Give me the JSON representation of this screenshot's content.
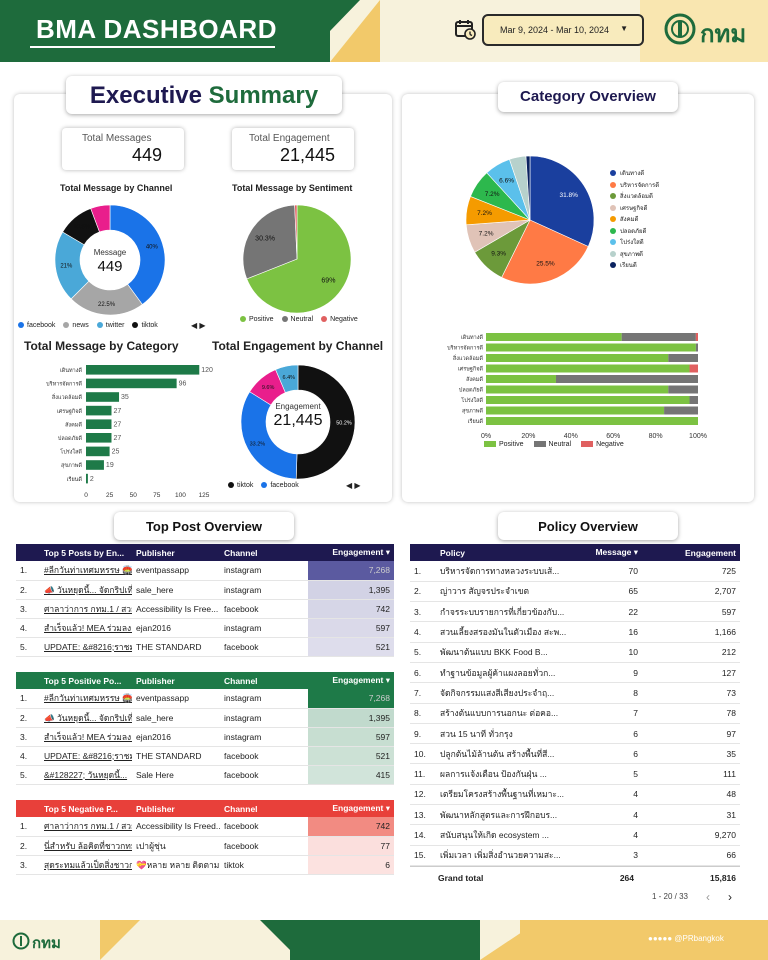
{
  "header": {
    "title": "BMA DASHBOARD",
    "date_range": "Mar 9, 2024 - Mar 10, 2024",
    "logo_text": "กทม"
  },
  "executive": {
    "title_part1": "Executive",
    "title_part2": "Summary",
    "kpi_messages_label": "Total Messages",
    "kpi_messages_value": "449",
    "kpi_engagement_label": "Total Engagement",
    "kpi_engagement_value": "21,445",
    "channel_title": "Total Message by Channel",
    "channel_center_label": "Message",
    "channel_center_value": "449",
    "sentiment_title": "Total Message by Sentiment",
    "category_title": "Total Message by Category",
    "engagement_title": "Total Engagement by Channel",
    "engagement_center_label": "Engagement",
    "engagement_center_value": "21,445"
  },
  "chart_data": [
    {
      "type": "pie",
      "title": "Total Message by Channel",
      "labels": [
        "facebook",
        "news",
        "twitter",
        "tiktok",
        "other"
      ],
      "values": [
        40,
        22.5,
        21,
        10.8,
        5.7
      ],
      "value_labels": [
        "40%",
        "22.5%",
        "21%",
        "10.8%",
        ""
      ],
      "colors": [
        "#1a73e8",
        "#a6a6a6",
        "#4aa8d8",
        "#111111",
        "#e91e8c"
      ],
      "legend": [
        "facebook",
        "news",
        "twitter",
        "tiktok"
      ]
    },
    {
      "type": "pie",
      "title": "Total Message by Sentiment",
      "labels": [
        "Positive",
        "Neutral",
        "Negative"
      ],
      "values": [
        69,
        30.3,
        0.7
      ],
      "value_labels": [
        "69%",
        "30.3%",
        ""
      ],
      "colors": [
        "#7cc242",
        "#757575",
        "#e06060"
      ],
      "legend": [
        "Positive",
        "Neutral",
        "Negative"
      ]
    },
    {
      "type": "bar",
      "title": "Total Message by Category",
      "categories": [
        "เดินทางดี",
        "บริหารจัดการดี",
        "สิ่งแวดล้อมดี",
        "เศรษฐกิจดี",
        "สังคมดี",
        "ปลอดภัยดี",
        "โปร่งใสดี",
        "สุขภาพดี",
        "เรียนดี"
      ],
      "values": [
        120,
        96,
        35,
        27,
        27,
        27,
        25,
        19,
        2
      ],
      "xticks": [
        "0",
        "25",
        "50",
        "75",
        "100",
        "125"
      ],
      "xlim": [
        0,
        125
      ],
      "color": "#1e7a48"
    },
    {
      "type": "pie",
      "title": "Total Engagement by Channel",
      "labels": [
        "tiktok",
        "facebook",
        "other1",
        "other2"
      ],
      "values": [
        50.2,
        33.2,
        9.6,
        6.4
      ],
      "value_labels": [
        "50.2%",
        "33.2%",
        "9.6%",
        "6.4%"
      ],
      "colors": [
        "#111111",
        "#1a73e8",
        "#e91e8c",
        "#4aa8d8"
      ],
      "legend": [
        "tiktok",
        "facebook"
      ]
    },
    {
      "type": "pie",
      "title": "Category Overview",
      "labels": [
        "เดินทางดี",
        "บริหารจัดการดี",
        "สิ่งแวดล้อมดี",
        "เศรษฐกิจดี",
        "สังคมดี",
        "ปลอดภัยดี",
        "โปร่งใสดี",
        "สุขภาพดี",
        "เรียนดี"
      ],
      "values": [
        31.8,
        25.5,
        9.3,
        7.2,
        7.2,
        7.2,
        6.6,
        4.2,
        1.0
      ],
      "value_labels": [
        "31.8%",
        "25.5%",
        "9.3%",
        "7.2%",
        "7.2%",
        "7.2%",
        "6.6%",
        "",
        ""
      ],
      "colors": [
        "#1a3f9e",
        "#ff7a45",
        "#6c9a3a",
        "#e0c3b7",
        "#f59b00",
        "#2db84d",
        "#5bc0eb",
        "#b7d1cc",
        "#0b2360"
      ]
    },
    {
      "type": "bar",
      "title": "Category sentiment",
      "stacked": true,
      "categories": [
        "เดินทางดี",
        "บริหารจัดการดี",
        "สิ่งแวดล้อมดี",
        "เศรษฐกิจดี",
        "สังคมดี",
        "ปลอดภัยดี",
        "โปร่งใสดี",
        "สุขภาพดี",
        "เรียนดี"
      ],
      "series": [
        {
          "name": "Positive",
          "values": [
            64,
            99,
            86,
            96,
            33,
            86,
            96,
            84,
            100
          ],
          "color": "#7cc242"
        },
        {
          "name": "Neutral",
          "values": [
            35,
            1,
            14,
            0,
            67,
            14,
            4,
            16,
            0
          ],
          "color": "#757575"
        },
        {
          "name": "Negative",
          "values": [
            1,
            0,
            0,
            4,
            0,
            0,
            0,
            0,
            0
          ],
          "color": "#e06060"
        }
      ],
      "xticks": [
        "0%",
        "20%",
        "40%",
        "60%",
        "80%",
        "100%"
      ],
      "xlim": [
        0,
        100
      ]
    }
  ],
  "category_overview": {
    "title": "Category Overview",
    "legend": [
      "เดินทางดี",
      "บริหารจัดการดี",
      "สิ่งแวดล้อมดี",
      "เศรษฐกิจดี",
      "สังคมดี",
      "ปลอดภัยดี",
      "โปร่งใสดี",
      "สุขภาพดี",
      "เรียนดี"
    ],
    "bar_legend": [
      "Positive",
      "Neutral",
      "Negative"
    ]
  },
  "top_post": {
    "title": "Top Post Overview",
    "tables": [
      {
        "header_color": "#1e1950",
        "highlight_color": "#5b5aa0",
        "columns": [
          "Top 5 Posts by En...",
          "Publisher",
          "Channel",
          "Engagement ▾"
        ],
        "rows": [
          [
            "1.",
            "#ลีกวันท่าเทศมหรรษ 🏟️ เนื้อ...",
            "eventpassapp",
            "instagram",
            "7,268"
          ],
          [
            "2.",
            "📣 วันหยุดนี้... จัดกริปเที่ยว...",
            "sale_here",
            "instagram",
            "1,395"
          ],
          [
            "3.",
            "ศาลาว่าการ กทม.1 / สวยๆ...",
            "Accessibility Is Free...",
            "facebook",
            "742"
          ],
          [
            "4.",
            "สำเร็จแล้ว! MEA ร่วมลง...",
            "ejan2016",
            "instagram",
            "597"
          ],
          [
            "5.",
            "UPDATE: &#8216;ราชม...",
            "THE STANDARD",
            "facebook",
            "521"
          ]
        ]
      },
      {
        "header_color": "#1e7a48",
        "highlight_color": "#1e7a48",
        "columns": [
          "Top 5 Positive Po...",
          "Publisher",
          "Channel",
          "Engagement ▾"
        ],
        "rows": [
          [
            "1.",
            "#ลีกวันท่าเทศมหรรษ 🏟️ เนื้อ...",
            "eventpassapp",
            "instagram",
            "7,268"
          ],
          [
            "2.",
            "📣 วันหยุดนี้... จัดกริปเที่ยว...",
            "sale_here",
            "instagram",
            "1,395"
          ],
          [
            "3.",
            "สำเร็จแล้ว! MEA ร่วมลง...",
            "ejan2016",
            "instagram",
            "597"
          ],
          [
            "4.",
            "UPDATE: &#8216;ราชม...",
            "THE STANDARD",
            "facebook",
            "521"
          ],
          [
            "5.",
            "&#128227; วันหยุดนี้...",
            "Sale Here",
            "facebook",
            "415"
          ]
        ]
      },
      {
        "header_color": "#e8403a",
        "highlight_color": "#f28b82",
        "columns": [
          "Top 5 Negative P...",
          "Publisher",
          "Channel",
          "Engagement ▾"
        ],
        "rows": [
          [
            "1.",
            "ศาลาว่าการ กทม.1 / สวย...",
            "Accessibility Is Freed...",
            "facebook",
            "742"
          ],
          [
            "2.",
            "นี่สำหรับ ล้อคิดที่ชาวกทม...",
            "เปาผู้ชุ่น",
            "facebook",
            "77"
          ],
          [
            "3.",
            "สุดระทมแล้วเป็ดสิ่งชาวก...",
            "💝หลาย หลาย ติดตามสุ...",
            "tiktok",
            "6"
          ]
        ]
      }
    ]
  },
  "policy": {
    "title": "Policy Overview",
    "columns": [
      "Policy",
      "Message ▾",
      "Engagement"
    ],
    "rows": [
      [
        "1.",
        "บริหารจัดการทางหลวงระบบเส้...",
        "70",
        "725"
      ],
      [
        "2.",
        "ญ่าวาร สัญจรประจำเขต",
        "65",
        "2,707"
      ],
      [
        "3.",
        "กำจรระบบรายการที่เกี่ยวข้องกับ...",
        "22",
        "597"
      ],
      [
        "4.",
        "สวนเลี้ยงสรองมันในตัวเมือง สะพ...",
        "16",
        "1,166"
      ],
      [
        "5.",
        "พัฒนาต้นแบบ BKK Food B...",
        "10",
        "212"
      ],
      [
        "6.",
        "ทำฐานข้อมูลผู้ค้าแผงลอยทั่วก...",
        "9",
        "127"
      ],
      [
        "7.",
        "จัดกิจกรรมแสงสีเสียงประจำฤ...",
        "8",
        "73"
      ],
      [
        "8.",
        "สร้างต้นแบบการนอกนะ ต่อคอ...",
        "7",
        "78"
      ],
      [
        "9.",
        "สวน 15 นาที ทั่วกรุง",
        "6",
        "97"
      ],
      [
        "10.",
        "ปลูกต้นไม้ล้านต้น สร้างพื้นที่สี...",
        "6",
        "35"
      ],
      [
        "11.",
        "ผลการแจ้งเตือน ป้องกันฝุ่น ...",
        "5",
        "111"
      ],
      [
        "12.",
        "เตรียมโครงสร้างพื้นฐานที่เหมาะ...",
        "4",
        "48"
      ],
      [
        "13.",
        "พัฒนาหลักสูตรและการฝึกอบร...",
        "4",
        "31"
      ],
      [
        "14.",
        "สนับสนุนให้เกิด ecosystem ...",
        "4",
        "9,270"
      ],
      [
        "15.",
        "เพิ่มเวลา เพิ่มสิ่งอำนวยความสะ...",
        "3",
        "66"
      ]
    ],
    "grand_total_label": "Grand total",
    "grand_total_message": "264",
    "grand_total_engagement": "15,816",
    "pagination": "1 - 20 / 33"
  },
  "footer": {
    "logo_text": "กทม",
    "social": "@PRbangkok"
  }
}
